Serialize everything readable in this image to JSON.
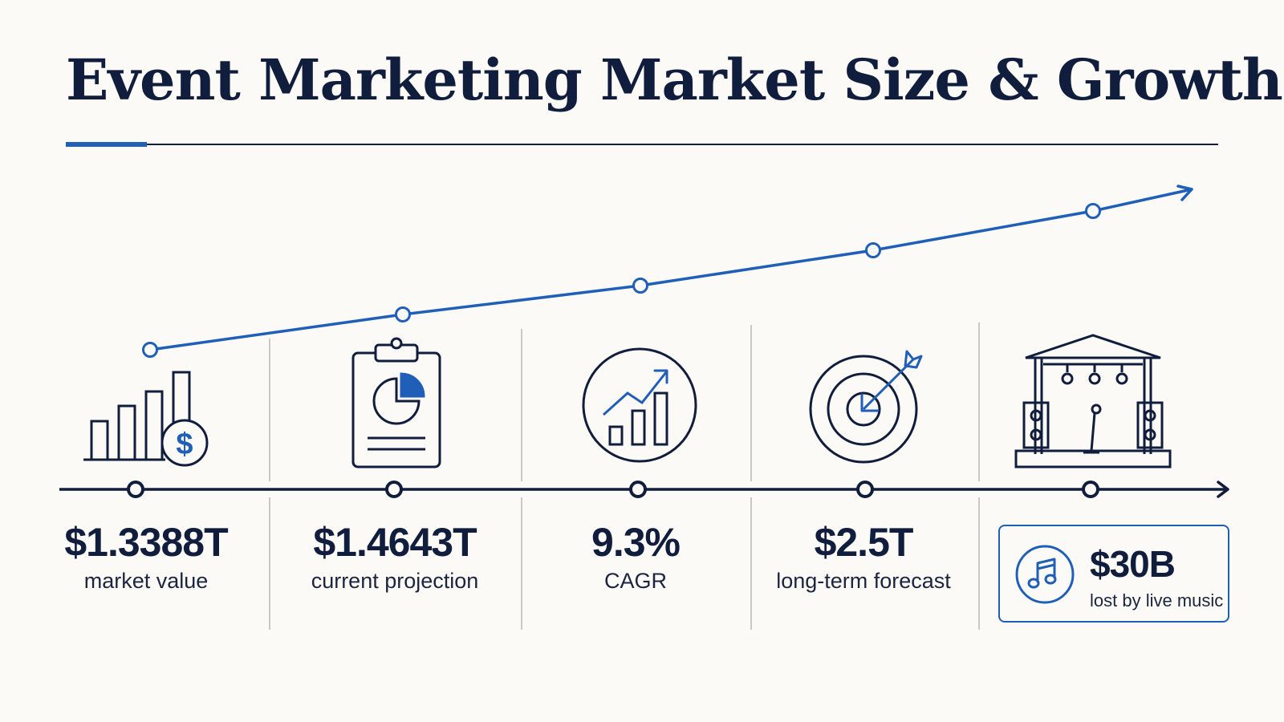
{
  "title": "Event Marketing Market Size & Growth",
  "stats": [
    {
      "value": "$1.3388T",
      "label": "market value",
      "icon": "bar-chart-dollar-icon"
    },
    {
      "value": "$1.4643T",
      "label": "current projection",
      "icon": "clipboard-pie-chart-icon"
    },
    {
      "value": "9.3%",
      "label": "CAGR",
      "icon": "growth-chart-circle-icon"
    },
    {
      "value": "$2.5T",
      "label": "long-term forecast",
      "icon": "target-arrow-icon"
    }
  ],
  "callout": {
    "value": "$30B",
    "label": "lost by live music",
    "icon": "music-note-icon",
    "stage_icon": "concert-stage-icon"
  },
  "colors": {
    "navy": "#111d3c",
    "accent": "#1f5fb8",
    "background": "#fbfaf6",
    "divider": "#c9c9c6"
  }
}
